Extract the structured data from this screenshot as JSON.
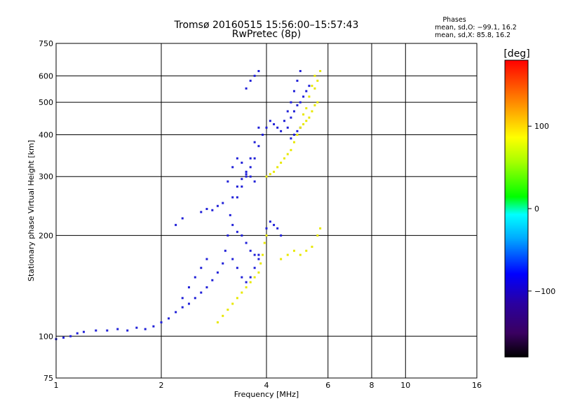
{
  "header": {
    "title_line1": "Tromsø 20160515 15:56:00–15:57:43",
    "title_line2": "RwPretec (8p)",
    "stats_heading": "Phases",
    "stats_line1": "mean, sd,O: −99.1, 16.2",
    "stats_line2": "mean, sd,X:  85.8, 16.2"
  },
  "chart_data": {
    "type": "scatter",
    "xlabel": "Frequency [MHz]",
    "ylabel": "Stationary phase Virtual Height [km]",
    "xscale": "log",
    "yscale": "log",
    "xlim": [
      1,
      16
    ],
    "ylim": [
      75,
      750
    ],
    "x_ticks": [
      1,
      2,
      4,
      6,
      8,
      10,
      16
    ],
    "x_tick_labels": [
      "1",
      "2",
      "4",
      "6",
      "8",
      "10",
      "16"
    ],
    "y_ticks": [
      75,
      100,
      200,
      300,
      400,
      500,
      600,
      750
    ],
    "y_tick_labels": [
      "75",
      "100",
      "200",
      "300",
      "400",
      "500",
      "600",
      "750"
    ],
    "x_gridlines": [
      2,
      4,
      6,
      8,
      10
    ],
    "y_gridlines": [
      100,
      200,
      300,
      400,
      500,
      600
    ],
    "grid": true,
    "colorbar": {
      "label": "[deg]",
      "min": -180,
      "max": 180,
      "ticks": [
        100,
        0,
        -100
      ],
      "tick_labels": [
        "100",
        "0",
        "−100"
      ]
    },
    "series": [
      {
        "points": [
          [
            1.0,
            98
          ],
          [
            1.05,
            99
          ],
          [
            1.1,
            100
          ],
          [
            1.15,
            102
          ],
          [
            1.2,
            103
          ],
          [
            1.3,
            104
          ],
          [
            1.4,
            104
          ],
          [
            1.5,
            105
          ],
          [
            1.6,
            104
          ],
          [
            1.7,
            106
          ],
          [
            1.8,
            105
          ],
          [
            1.9,
            107
          ],
          [
            2.0,
            110
          ],
          [
            2.1,
            113
          ],
          [
            2.2,
            118
          ],
          [
            2.3,
            122
          ],
          [
            2.4,
            125
          ],
          [
            2.5,
            130
          ],
          [
            2.6,
            135
          ],
          [
            2.7,
            140
          ],
          [
            2.8,
            147
          ],
          [
            2.9,
            155
          ],
          [
            3.0,
            165
          ],
          [
            3.05,
            180
          ],
          [
            3.1,
            200
          ],
          [
            3.15,
            230
          ],
          [
            3.2,
            260
          ],
          [
            3.3,
            280
          ],
          [
            3.4,
            295
          ],
          [
            3.5,
            305
          ],
          [
            3.6,
            320
          ],
          [
            3.7,
            340
          ],
          [
            3.8,
            370
          ],
          [
            3.9,
            400
          ],
          [
            4.0,
            420
          ],
          [
            4.1,
            440
          ],
          [
            4.2,
            430
          ],
          [
            4.3,
            420
          ],
          [
            4.4,
            410
          ],
          [
            4.5,
            440
          ],
          [
            4.6,
            470
          ],
          [
            4.7,
            500
          ],
          [
            4.8,
            540
          ],
          [
            4.9,
            580
          ],
          [
            5.0,
            620
          ],
          [
            3.1,
            290
          ],
          [
            3.2,
            320
          ],
          [
            3.3,
            340
          ],
          [
            3.4,
            330
          ],
          [
            3.5,
            310
          ],
          [
            3.6,
            300
          ],
          [
            3.7,
            290
          ],
          [
            3.3,
            260
          ],
          [
            3.4,
            280
          ],
          [
            3.5,
            300
          ],
          [
            3.6,
            340
          ],
          [
            3.7,
            380
          ],
          [
            3.8,
            420
          ],
          [
            3.5,
            550
          ],
          [
            3.6,
            580
          ],
          [
            3.7,
            600
          ],
          [
            3.8,
            620
          ],
          [
            2.2,
            215
          ],
          [
            2.3,
            225
          ],
          [
            2.6,
            235
          ],
          [
            2.7,
            240
          ],
          [
            2.8,
            238
          ],
          [
            2.9,
            245
          ],
          [
            3.0,
            250
          ],
          [
            3.2,
            215
          ],
          [
            3.3,
            205
          ],
          [
            3.4,
            200
          ],
          [
            3.5,
            190
          ],
          [
            3.6,
            180
          ],
          [
            3.7,
            175
          ],
          [
            3.8,
            170
          ],
          [
            3.2,
            170
          ],
          [
            3.3,
            160
          ],
          [
            3.4,
            150
          ],
          [
            3.5,
            145
          ],
          [
            3.6,
            150
          ],
          [
            3.7,
            160
          ],
          [
            3.8,
            175
          ],
          [
            4.0,
            210
          ],
          [
            4.1,
            220
          ],
          [
            4.2,
            215
          ],
          [
            4.3,
            210
          ],
          [
            4.4,
            200
          ],
          [
            2.3,
            130
          ],
          [
            2.4,
            140
          ],
          [
            2.5,
            150
          ],
          [
            2.6,
            160
          ],
          [
            2.7,
            170
          ],
          [
            4.6,
            420
          ],
          [
            4.7,
            450
          ],
          [
            4.8,
            470
          ],
          [
            4.9,
            490
          ],
          [
            5.0,
            500
          ],
          [
            5.1,
            520
          ],
          [
            5.2,
            540
          ],
          [
            5.3,
            560
          ],
          [
            4.7,
            390
          ],
          [
            4.8,
            400
          ],
          [
            4.9,
            410
          ],
          [
            5.0,
            420
          ]
        ],
        "phase_deg": -110
      },
      {
        "points": [
          [
            2.9,
            110
          ],
          [
            3.0,
            115
          ],
          [
            3.1,
            120
          ],
          [
            3.2,
            125
          ],
          [
            3.3,
            130
          ],
          [
            3.4,
            135
          ],
          [
            3.5,
            140
          ],
          [
            3.6,
            145
          ],
          [
            3.7,
            150
          ],
          [
            3.8,
            155
          ],
          [
            3.85,
            165
          ],
          [
            3.9,
            175
          ],
          [
            3.95,
            190
          ],
          [
            4.0,
            200
          ],
          [
            4.0,
            300
          ],
          [
            4.1,
            305
          ],
          [
            4.2,
            310
          ],
          [
            4.3,
            320
          ],
          [
            4.4,
            330
          ],
          [
            4.5,
            340
          ],
          [
            4.6,
            350
          ],
          [
            4.7,
            360
          ],
          [
            4.8,
            380
          ],
          [
            4.9,
            400
          ],
          [
            5.0,
            420
          ],
          [
            5.1,
            430
          ],
          [
            5.2,
            440
          ],
          [
            5.3,
            450
          ],
          [
            5.4,
            470
          ],
          [
            5.5,
            490
          ],
          [
            5.6,
            500
          ],
          [
            5.5,
            550
          ],
          [
            5.6,
            580
          ],
          [
            5.7,
            620
          ],
          [
            5.5,
            600
          ],
          [
            5.4,
            560
          ],
          [
            5.3,
            520
          ],
          [
            5.2,
            480
          ],
          [
            5.1,
            460
          ],
          [
            4.4,
            170
          ],
          [
            4.6,
            175
          ],
          [
            4.8,
            180
          ],
          [
            5.0,
            175
          ],
          [
            5.2,
            180
          ],
          [
            5.4,
            185
          ],
          [
            5.6,
            200
          ],
          [
            5.7,
            210
          ]
        ],
        "phase_deg": 105
      }
    ]
  }
}
